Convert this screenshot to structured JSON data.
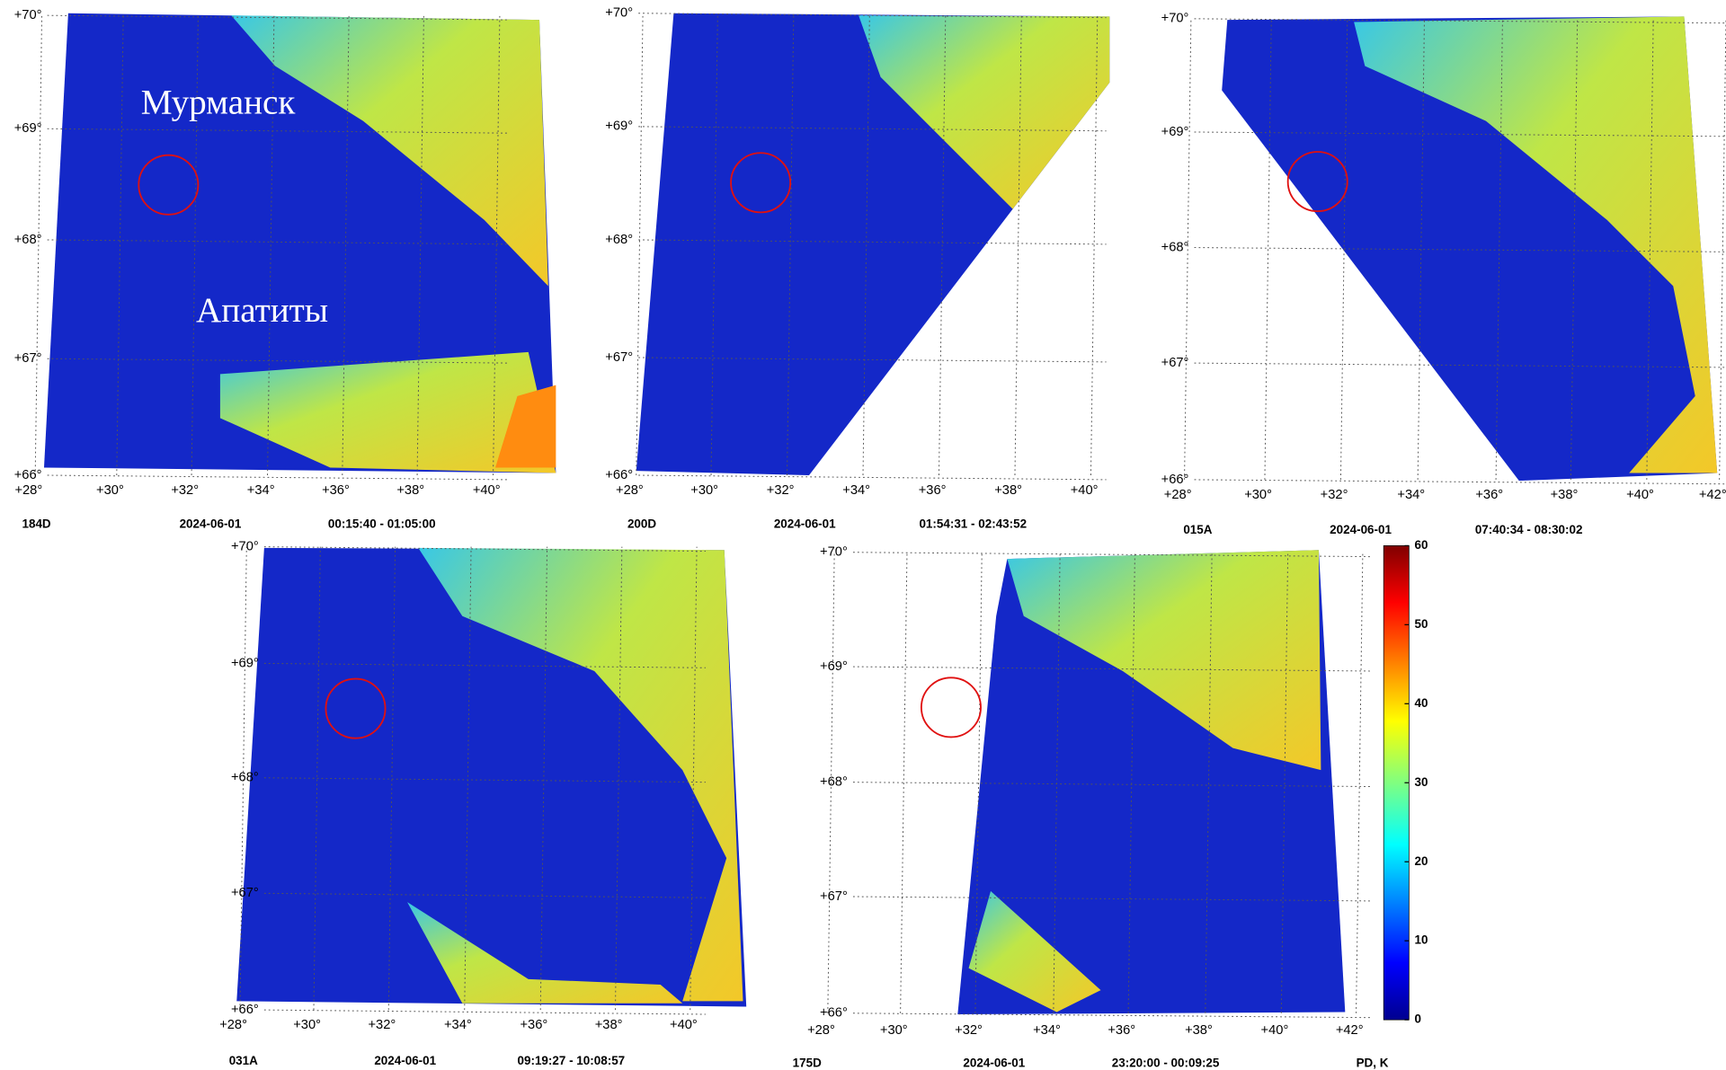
{
  "panels": [
    {
      "orbit": "184D",
      "date": "2024-06-01",
      "time": "00:15:40 - 01:05:00",
      "lat_labels": [
        "+70°",
        "+69°",
        "+68°",
        "+67°",
        "+66°"
      ],
      "lon_labels": [
        "+28°",
        "+30°",
        "+32°",
        "+34°",
        "+36°",
        "+38°",
        "+40°"
      ]
    },
    {
      "orbit": "200D",
      "date": "2024-06-01",
      "time": "01:54:31 - 02:43:52",
      "lat_labels": [
        "+70°",
        "+69°",
        "+68°",
        "+67°",
        "+66°"
      ],
      "lon_labels": [
        "+28°",
        "+30°",
        "+32°",
        "+34°",
        "+36°",
        "+38°",
        "+40°"
      ]
    },
    {
      "orbit": "015A",
      "date": "2024-06-01",
      "time": "07:40:34 - 08:30:02",
      "lat_labels": [
        "+70°",
        "+69°",
        "+68°",
        "+67°",
        "+66°"
      ],
      "lon_labels": [
        "+28°",
        "+30°",
        "+32°",
        "+34°",
        "+36°",
        "+38°",
        "+40°",
        "+42°"
      ]
    },
    {
      "orbit": "031A",
      "date": "2024-06-01",
      "time": "09:19:27 - 10:08:57",
      "lat_labels": [
        "+70°",
        "+69°",
        "+68°",
        "+67°",
        "+66°"
      ],
      "lon_labels": [
        "+28°",
        "+30°",
        "+32°",
        "+34°",
        "+36°",
        "+38°",
        "+40°"
      ]
    },
    {
      "orbit": "175D",
      "date": "2024-06-01",
      "time": "23:20:00 - 00:09:25",
      "lat_labels": [
        "+70°",
        "+69°",
        "+68°",
        "+67°",
        "+66°"
      ],
      "lon_labels": [
        "+28°",
        "+30°",
        "+32°",
        "+34°",
        "+36°",
        "+38°",
        "+40°",
        "+42°"
      ]
    }
  ],
  "city_labels": [
    "Мурманск",
    "Апатиты"
  ],
  "colorbar": {
    "label": "PD, K",
    "range": [
      0,
      60
    ],
    "ticks": [
      0,
      10,
      20,
      30,
      40,
      50,
      60
    ]
  }
}
